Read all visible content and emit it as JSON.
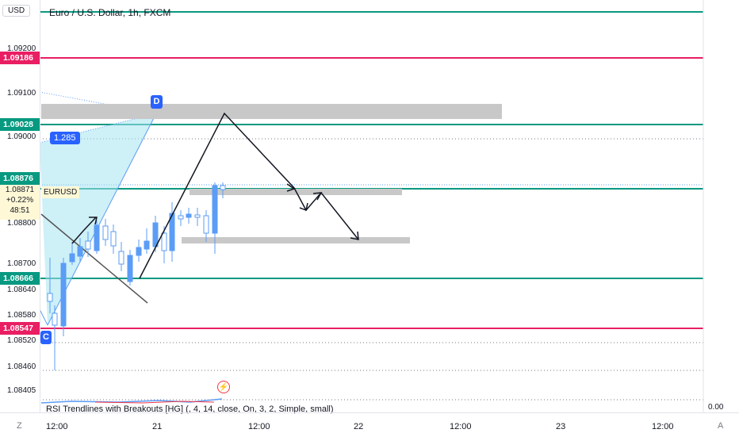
{
  "header": {
    "title": "Euro / U.S. Dollar, 1h, FXCM",
    "currency": "USD"
  },
  "price_axis": {
    "ticks": [
      "1.09200",
      "1.09100",
      "1.09000",
      "1.08800",
      "1.08700",
      "1.08640",
      "1.08580",
      "1.08520",
      "1.08460",
      "1.08405"
    ],
    "tags": [
      {
        "label": "1.09186",
        "color": "#e91e63"
      },
      {
        "label": "1.09028",
        "color": "#089981"
      },
      {
        "label": "1.08876",
        "color": "#089981"
      },
      {
        "label": "1.08666",
        "color": "#089981"
      },
      {
        "label": "1.08547",
        "color": "#e91e63"
      }
    ],
    "last_price": {
      "value": "1.08871",
      "change": "+0.22%",
      "countdown": "48:51"
    }
  },
  "symbol_tag": "EURUSD",
  "pattern": {
    "point_d": "D",
    "point_c": "C",
    "ratio": "1.285"
  },
  "indicator": {
    "label": "RSI Trendlines with Breakouts [HG] (, 4, 14, close, On, 3, 2, Simple, small)",
    "value": "0.00"
  },
  "time_axis": {
    "labels": [
      "12:00",
      "21",
      "12:00",
      "22",
      "12:00",
      "23",
      "12:00"
    ],
    "left_corner": "Z",
    "right_corner": "A"
  },
  "colors": {
    "up": "#5b9cf6",
    "down": "#5b9cf6",
    "green_line": "#089981",
    "red_line": "#e91e63",
    "zone": "#c8c8c8",
    "xabcd": "#a6e4f0"
  }
}
